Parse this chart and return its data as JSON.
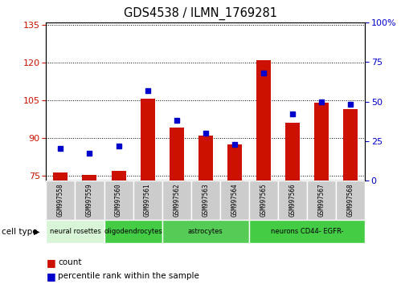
{
  "title": "GDS4538 / ILMN_1769281",
  "samples": [
    "GSM997558",
    "GSM997559",
    "GSM997560",
    "GSM997561",
    "GSM997562",
    "GSM997563",
    "GSM997564",
    "GSM997565",
    "GSM997566",
    "GSM997567",
    "GSM997568"
  ],
  "count_values": [
    76.2,
    75.3,
    76.8,
    105.5,
    94.0,
    91.0,
    87.5,
    121.0,
    96.0,
    104.0,
    101.5
  ],
  "percentile_values": [
    20,
    17,
    22,
    57,
    38,
    30,
    23,
    68,
    42,
    50,
    48
  ],
  "cell_type_groups": [
    {
      "label": "neural rosettes",
      "start": 0,
      "end": 1,
      "color": "#e0f5e0"
    },
    {
      "label": "oligodendrocytes",
      "start": 2,
      "end": 3,
      "color": "#55dd55"
    },
    {
      "label": "astrocytes",
      "start": 4,
      "end": 6,
      "color": "#66cc66"
    },
    {
      "label": "neurons CD44- EGFR-",
      "start": 7,
      "end": 10,
      "color": "#44cc44"
    }
  ],
  "ylim_left": [
    73,
    136
  ],
  "ylim_right": [
    0,
    100
  ],
  "left_ticks": [
    75,
    90,
    105,
    120,
    135
  ],
  "right_ticks": [
    0,
    25,
    50,
    75,
    100
  ],
  "bar_color": "#cc1100",
  "dot_color": "#0000cc",
  "bar_width": 0.5,
  "background_color": "#ffffff",
  "left_tick_color": "#cc1100",
  "right_tick_color": "#0000cc",
  "sample_box_color": "#cccccc",
  "cell_type_label": "cell type"
}
